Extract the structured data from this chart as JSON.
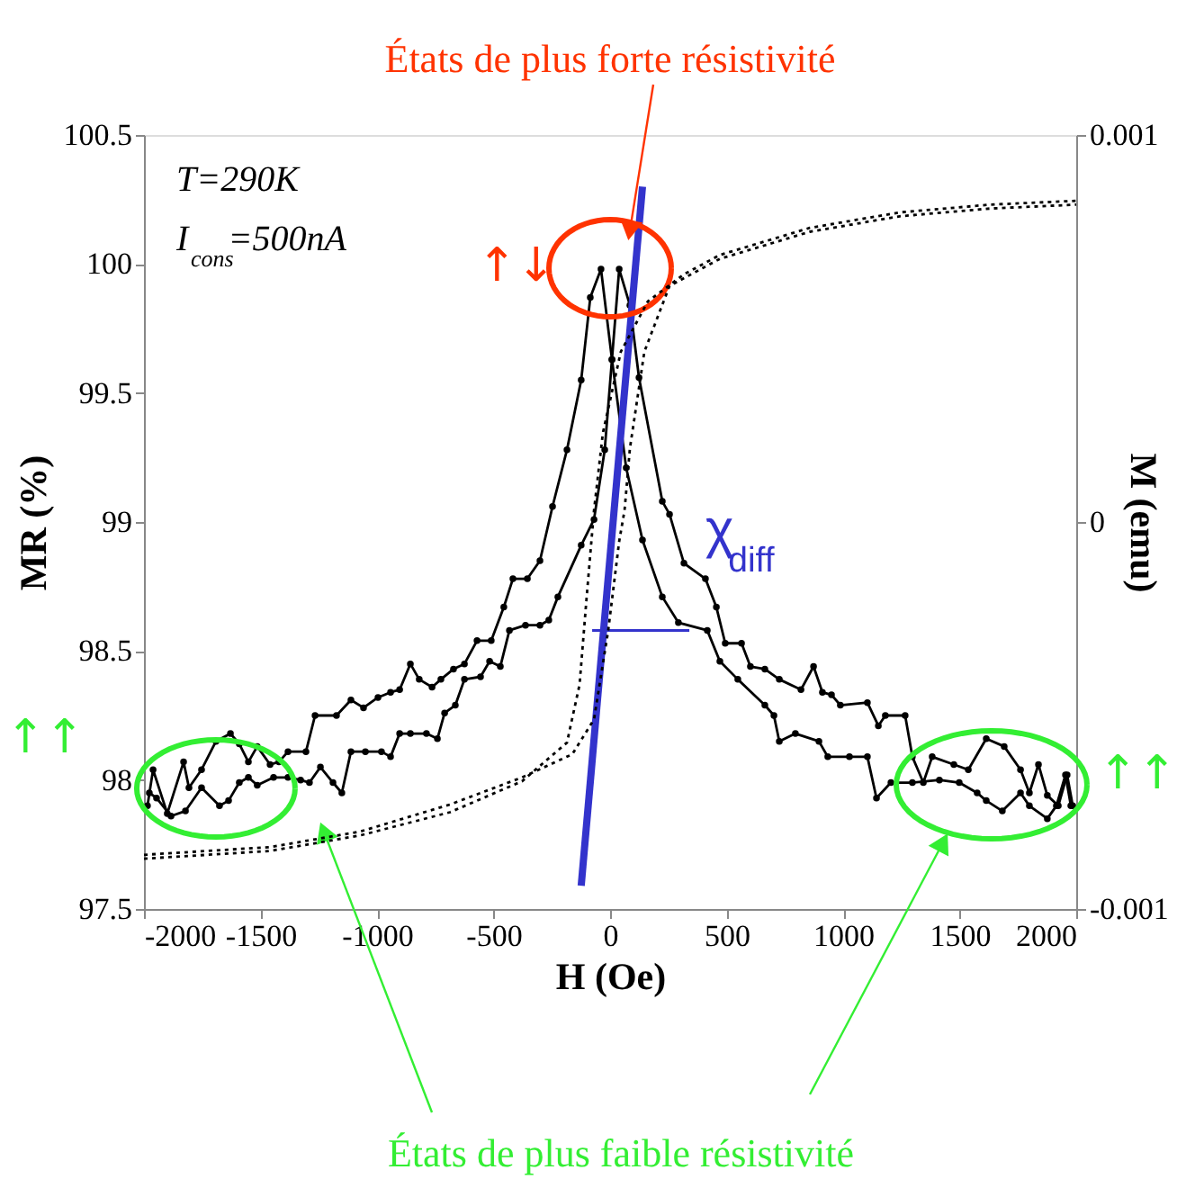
{
  "chart_data": {
    "type": "line",
    "xlabel": "H (Oe)",
    "ylabel": "MR (%)",
    "y2label": "M (emu)",
    "xlim": [
      -2000,
      2000
    ],
    "xticks": [
      -2000,
      -1500,
      -1000,
      -500,
      0,
      500,
      1000,
      1500,
      2000
    ],
    "ylim": [
      97.5,
      100.5
    ],
    "yticks": [
      97.5,
      98,
      98.5,
      99,
      99.5,
      100,
      100.5
    ],
    "y2lim": [
      -0.001,
      0.001
    ],
    "y2ticks": [
      -0.001,
      0,
      0.001
    ],
    "grid": false,
    "annotations": [
      {
        "text": "États de plus forte résistivité",
        "x": 85,
        "y": 100.13
      },
      {
        "text": "États de plus faible résistivité",
        "x": -1228,
        "y": 97.8
      },
      "T=290K",
      "I$_{cons}$=500nA",
      "χ$_{diff}$",
      "↑↓",
      "↑↑",
      "↑↑"
    ],
    "series": [
      {
        "color": "#000000",
        "marker": "circle",
        "line_style": "solid",
        "x": [
          -1985,
          -1961,
          -1900,
          -1830,
          -1807,
          -1753,
          -1691,
          -1629,
          -1591,
          -1552,
          -1514,
          -1459,
          -1421,
          -1382,
          -1305,
          -1266,
          -1174,
          -1112,
          -1058,
          -996,
          -942,
          -903,
          -857,
          -819,
          -764,
          -726,
          -672,
          -625,
          -571,
          -510,
          -456,
          -417,
          -355,
          -301,
          -247,
          -185,
          -124,
          -85,
          -39,
          8,
          69,
          139,
          224,
          293,
          417,
          471,
          548,
          664,
          703,
          726,
          795,
          896,
          934,
          1027,
          1104,
          1143,
          1205,
          1297,
          1413,
          1498,
          1575,
          1614,
          1683,
          1761,
          1799,
          1876,
          1915,
          1954,
          1977
        ],
        "values": [
          97.9,
          98.04,
          97.87,
          98.07,
          97.97,
          98.04,
          98.15,
          98.18,
          98.14,
          98.07,
          98.13,
          98.06,
          98.07,
          98.11,
          98.11,
          98.25,
          98.25,
          98.31,
          98.28,
          98.32,
          98.34,
          98.35,
          98.45,
          98.39,
          98.36,
          98.39,
          98.43,
          98.45,
          98.54,
          98.54,
          98.67,
          98.78,
          98.78,
          98.85,
          99.06,
          99.28,
          99.55,
          99.87,
          99.98,
          99.63,
          99.21,
          98.93,
          98.71,
          98.61,
          98.58,
          98.46,
          98.39,
          98.29,
          98.25,
          98.15,
          98.18,
          98.15,
          98.09,
          98.09,
          98.09,
          97.93,
          97.99,
          97.99,
          98.0,
          97.99,
          97.95,
          97.92,
          97.88,
          97.95,
          97.9,
          97.85,
          97.9,
          98.02,
          97.9
        ]
      },
      {
        "color": "#000000",
        "marker": "circle",
        "line_style": "solid",
        "x": [
          -1977,
          -1946,
          -1884,
          -1822,
          -1753,
          -1676,
          -1637,
          -1591,
          -1552,
          -1514,
          -1444,
          -1382,
          -1328,
          -1290,
          -1243,
          -1189,
          -1151,
          -1112,
          -1050,
          -981,
          -942,
          -903,
          -857,
          -788,
          -741,
          -710,
          -664,
          -625,
          -556,
          -517,
          -471,
          -432,
          -363,
          -301,
          -263,
          -224,
          -124,
          -69,
          -23,
          8,
          39,
          85,
          124,
          224,
          255,
          317,
          409,
          456,
          494,
          564,
          602,
          664,
          726,
          819,
          873,
          911,
          950,
          988,
          1104,
          1151,
          1181,
          1266,
          1297,
          1344,
          1382,
          1475,
          1537,
          1614,
          1691,
          1761,
          1799,
          1838,
          1876,
          1923,
          1961,
          1985
        ],
        "values": [
          97.95,
          97.93,
          97.86,
          97.88,
          97.97,
          97.9,
          97.92,
          97.99,
          98.01,
          97.98,
          98.01,
          98.01,
          98.0,
          97.99,
          98.05,
          97.99,
          97.95,
          98.11,
          98.11,
          98.11,
          98.09,
          98.18,
          98.18,
          98.18,
          98.16,
          98.26,
          98.29,
          98.39,
          98.4,
          98.46,
          98.44,
          98.58,
          98.6,
          98.6,
          98.62,
          98.71,
          98.91,
          99.01,
          99.28,
          99.63,
          99.98,
          99.84,
          99.56,
          99.08,
          99.03,
          98.84,
          98.78,
          98.67,
          98.53,
          98.53,
          98.44,
          98.43,
          98.39,
          98.35,
          98.44,
          98.34,
          98.33,
          98.29,
          98.3,
          98.21,
          98.25,
          98.25,
          98.09,
          97.99,
          98.09,
          98.06,
          98.04,
          98.16,
          98.13,
          98.04,
          97.95,
          98.06,
          97.94,
          97.9,
          98.02,
          97.9
        ]
      },
      {
        "color": "#000000",
        "marker": "none",
        "line_style": "dotted",
        "axis": "y2",
        "x": [
          -2000,
          -1459,
          -1073,
          -687,
          -378,
          -185,
          -131,
          -100,
          -69,
          -31,
          46,
          162,
          317,
          471,
          857,
          1243,
          1629,
          2000
        ],
        "values": [
          -0.00087,
          -0.00085,
          -0.00081,
          -0.00075,
          -0.00067,
          -0.00057,
          -0.00042,
          -0.00019,
          3e-05,
          0.00023,
          0.00044,
          0.00057,
          0.00064,
          0.00069,
          0.00076,
          0.0008,
          0.00082,
          0.00083
        ]
      },
      {
        "color": "#000000",
        "marker": "none",
        "line_style": "dotted",
        "axis": "y2",
        "x": [
          -2000,
          -1459,
          -1073,
          -687,
          -378,
          -162,
          -69,
          -8,
          39,
          62,
          85,
          147,
          255,
          471,
          857,
          1243,
          1629,
          2000
        ],
        "values": [
          -0.00086,
          -0.00084,
          -0.0008,
          -0.00073,
          -0.00066,
          -0.0006,
          -0.00051,
          -0.00028,
          -5e-05,
          3e-05,
          0.00019,
          0.00044,
          0.00061,
          0.00068,
          0.00075,
          0.00079,
          0.00081,
          0.00082
        ]
      },
      {
        "color": "#3333cc",
        "marker": "none",
        "line_style": "solid",
        "x": [
          -124,
          139
        ],
        "values": [
          97.59,
          100.3
        ]
      },
      {
        "color": "#3333cc",
        "marker": "none",
        "line_style": "solid",
        "x": [
          -77,
          340
        ],
        "values": [
          98.58,
          98.58
        ]
      }
    ]
  }
}
